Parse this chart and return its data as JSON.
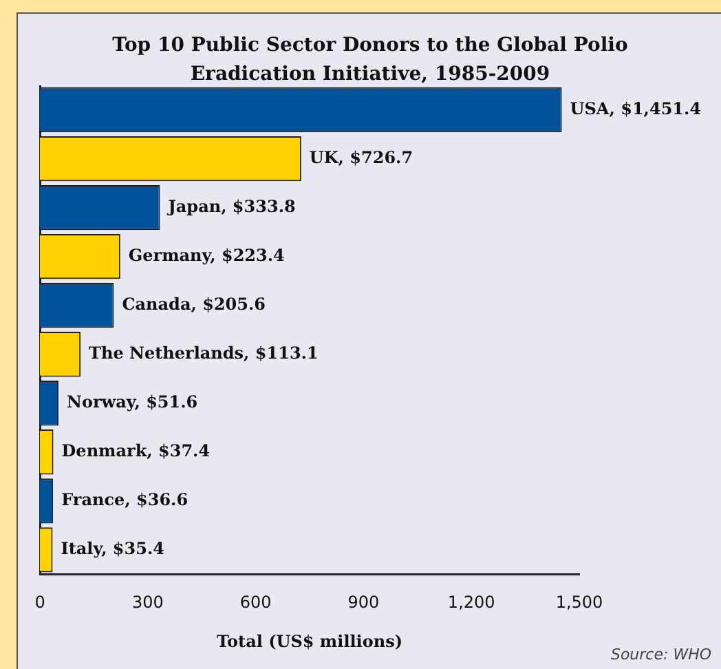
{
  "chart_data": {
    "type": "bar",
    "orientation": "horizontal",
    "title": "Top 10 Public Sector Donors to the Global Polio Eradication Initiative, 1985-2009",
    "xlabel": "Total (US$ millions)",
    "categories": [
      "USA",
      "UK",
      "Japan",
      "Germany",
      "Canada",
      "The Netherlands",
      "Norway",
      "Denmark",
      "France",
      "Italy"
    ],
    "values": [
      1451.4,
      726.7,
      333.8,
      223.4,
      205.6,
      113.1,
      51.6,
      37.4,
      36.6,
      35.4
    ],
    "value_labels": [
      ", $1,451.4",
      ", $726.7",
      ", $333.8",
      ", $223.4",
      ", $205.6",
      ", $113.1",
      ", $51.6",
      ", $37.4",
      ", $36.6",
      ", $35.4"
    ],
    "colors": [
      "#00529b",
      "#ffd200",
      "#00529b",
      "#ffd200",
      "#00529b",
      "#ffd200",
      "#00529b",
      "#ffd200",
      "#00529b",
      "#ffd200"
    ],
    "xlim": [
      0,
      1500
    ],
    "xticks": [
      0,
      {
        "value": 300,
        "label": "300"
      },
      {
        "value": 600,
        "label": "600"
      },
      {
        "value": 900,
        "label": "900"
      },
      {
        "value": 1200,
        "label": "1,200"
      },
      {
        "value": 1500,
        "label": "1,500"
      }
    ],
    "grid": false,
    "legend": false,
    "tick_labels": "x",
    "annotations": [
      "Source: WHO"
    ]
  }
}
